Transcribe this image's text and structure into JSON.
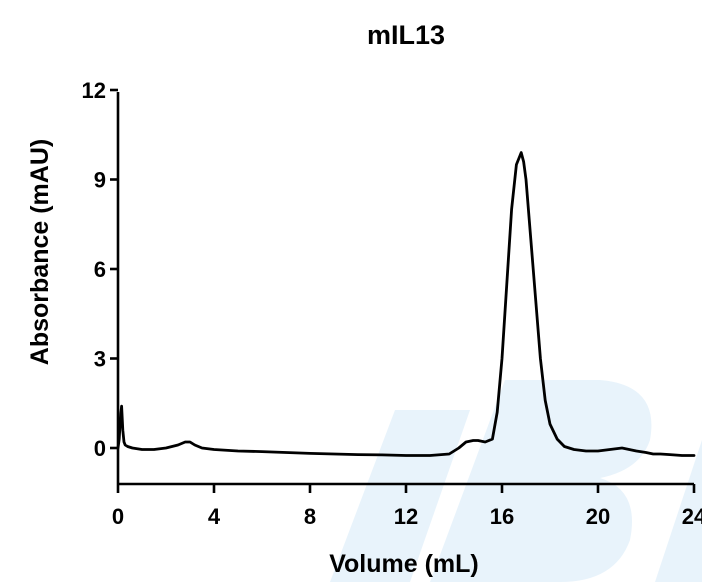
{
  "chart_data": {
    "type": "line",
    "title": "mIL13",
    "xlabel": "Volume (mL)",
    "ylabel": "Absorbance (mAU)",
    "xlim": [
      0,
      24
    ],
    "ylim": [
      -1,
      12
    ],
    "xticks": [
      "0",
      "4",
      "8",
      "12",
      "16",
      "20",
      "24"
    ],
    "yticks": [
      "0",
      "3",
      "6",
      "9",
      "12"
    ],
    "grid": false,
    "legend": "none",
    "line_color": "#000000",
    "watermark_color": "#e8f3fb",
    "series": [
      {
        "x": [
          0,
          0.05,
          0.1,
          0.15,
          0.2,
          0.25,
          0.3,
          0.4,
          0.6,
          1.0,
          1.5,
          2.0,
          2.5,
          2.8,
          3.0,
          3.2,
          3.5,
          4.0,
          5.0,
          6.0,
          7.0,
          8.0,
          9.0,
          10.0,
          11.0,
          12.0,
          13.0,
          13.8,
          14.2,
          14.5,
          14.8,
          15.0,
          15.3,
          15.6,
          15.8,
          16.0,
          16.2,
          16.4,
          16.6,
          16.8,
          16.9,
          17.0,
          17.2,
          17.4,
          17.6,
          17.8,
          18.0,
          18.3,
          18.6,
          19.0,
          19.5,
          20.0,
          20.5,
          21.0,
          21.3,
          21.6,
          22.0,
          22.3,
          22.6,
          23.0,
          23.5,
          24.0
        ],
        "y": [
          0.0,
          0.3,
          1.0,
          1.4,
          0.6,
          0.2,
          0.1,
          0.05,
          0.0,
          -0.05,
          -0.05,
          0.0,
          0.1,
          0.2,
          0.2,
          0.1,
          0.0,
          -0.05,
          -0.1,
          -0.12,
          -0.15,
          -0.18,
          -0.2,
          -0.22,
          -0.23,
          -0.25,
          -0.25,
          -0.2,
          0.0,
          0.2,
          0.25,
          0.25,
          0.2,
          0.3,
          1.2,
          3.0,
          5.5,
          8.0,
          9.5,
          9.9,
          9.6,
          9.0,
          7.0,
          5.0,
          3.0,
          1.6,
          0.8,
          0.3,
          0.05,
          -0.05,
          -0.1,
          -0.1,
          -0.05,
          0.0,
          -0.05,
          -0.1,
          -0.15,
          -0.2,
          -0.2,
          -0.22,
          -0.25,
          -0.25
        ]
      }
    ]
  }
}
